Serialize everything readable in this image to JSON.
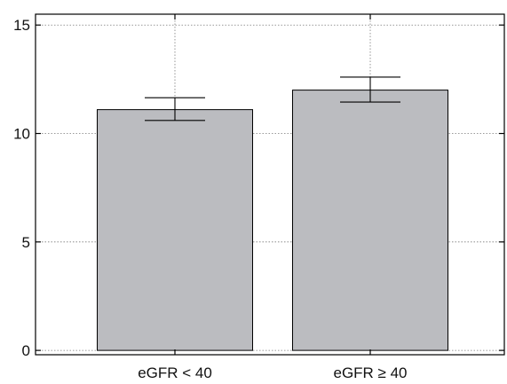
{
  "chart_data": {
    "type": "bar",
    "title": "",
    "xlabel": "",
    "ylabel": "",
    "categories": [
      "eGFR < 40",
      "eGFR ≥ 40"
    ],
    "values": [
      11.1,
      12.0
    ],
    "error_bars": {
      "upper": [
        11.65,
        12.6
      ],
      "lower": [
        10.6,
        11.45
      ]
    },
    "ylim": [
      0,
      15
    ],
    "yticks": [
      "0",
      "5",
      "10",
      "15"
    ],
    "grid": true,
    "legend": "none",
    "colors": {
      "bar_fill": "#bbbcc0",
      "bar_stroke": "#000000",
      "grid": "#7a7a7a",
      "axes": "#000000"
    }
  }
}
